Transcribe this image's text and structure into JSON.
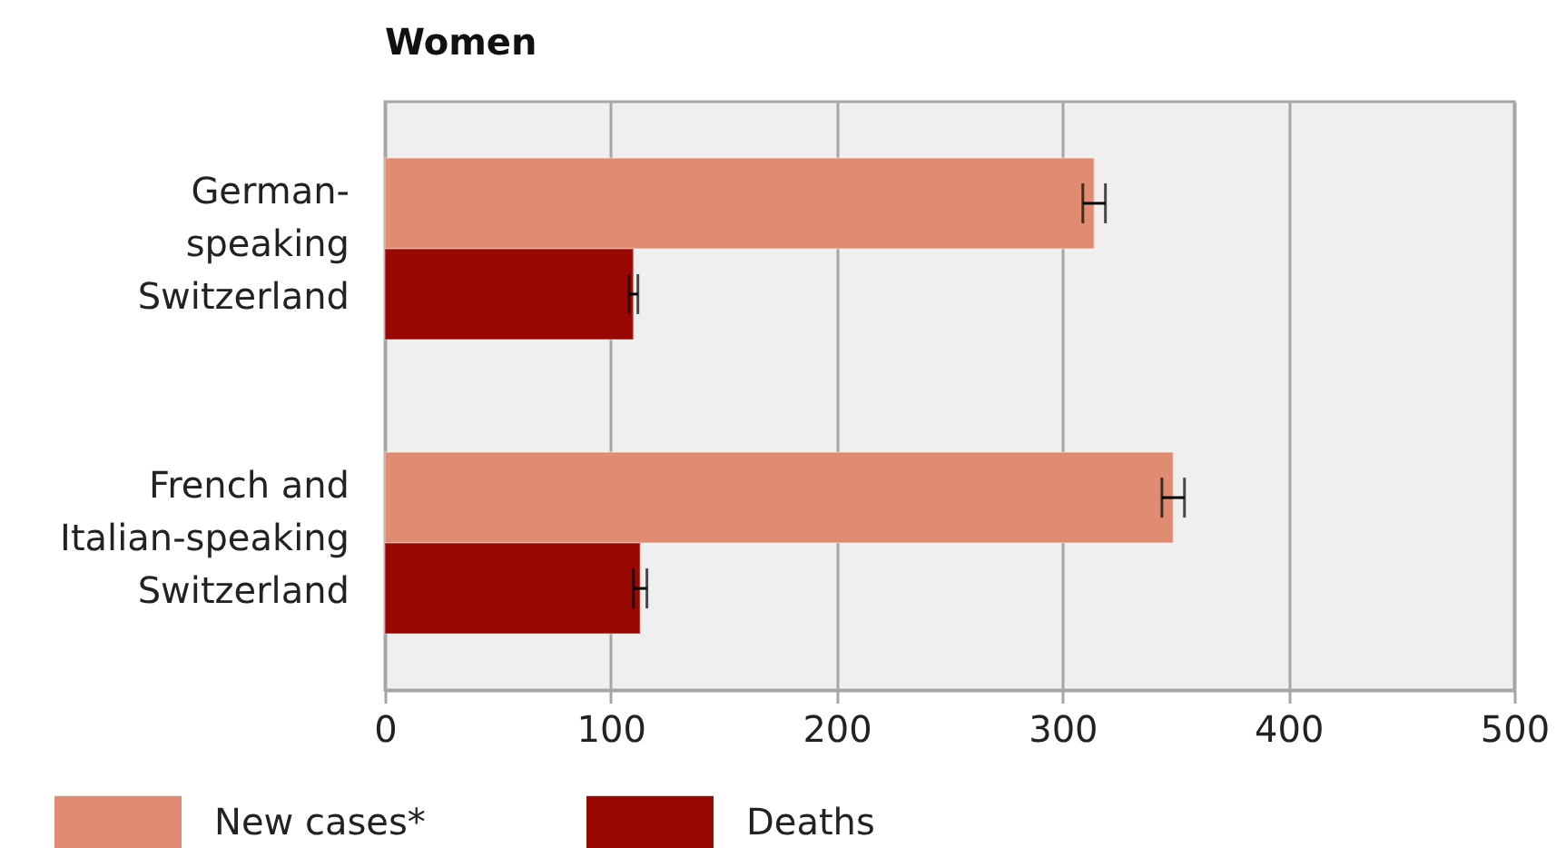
{
  "chart_data": {
    "type": "bar",
    "orientation": "horizontal",
    "title": "Women",
    "categories": [
      "German-\nspeaking\nSwitzerland",
      "French and\nItalian-speaking\nSwitzerland"
    ],
    "series": [
      {
        "name": "New cases*",
        "color": "#e08c72",
        "values": [
          314,
          349
        ],
        "errors": [
          5,
          5
        ]
      },
      {
        "name": "Deaths",
        "color": "#990800",
        "values": [
          110,
          113
        ],
        "errors": [
          2,
          3
        ]
      }
    ],
    "xlim": [
      0,
      500
    ],
    "xticks": [
      0,
      100,
      200,
      300,
      400,
      500
    ],
    "grid": "x",
    "legend": "bottom"
  }
}
